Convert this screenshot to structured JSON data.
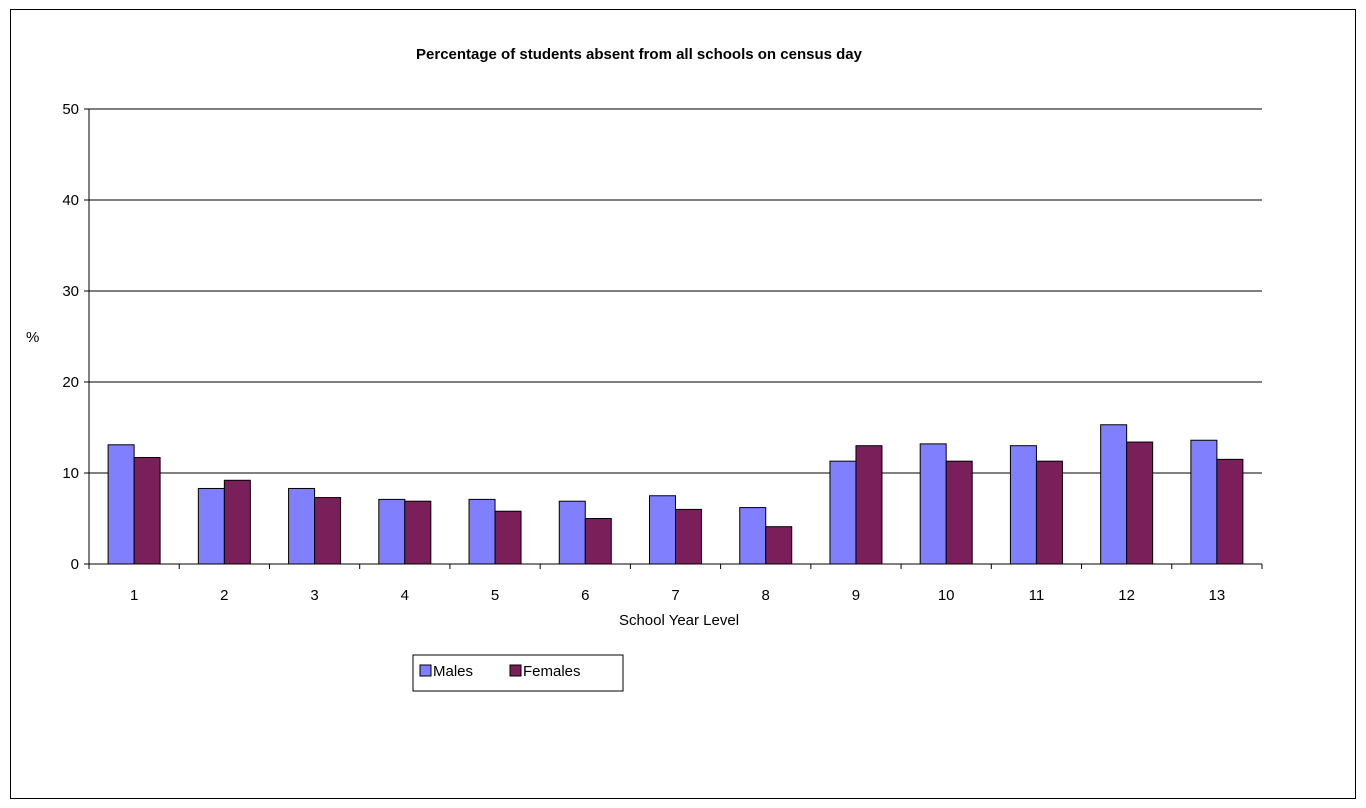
{
  "chart_data": {
    "type": "bar",
    "title": "Percentage of students absent from all schools on census day",
    "xlabel": "School Year Level",
    "ylabel": "%",
    "categories": [
      "1",
      "2",
      "3",
      "4",
      "5",
      "6",
      "7",
      "8",
      "9",
      "10",
      "11",
      "12",
      "13"
    ],
    "series": [
      {
        "name": "Males",
        "color": "#8080FF",
        "values": [
          13.1,
          8.3,
          8.3,
          7.1,
          7.1,
          6.9,
          7.5,
          6.2,
          11.3,
          13.2,
          13.0,
          15.3,
          13.6
        ]
      },
      {
        "name": "Females",
        "color": "#7B1F5A",
        "values": [
          11.7,
          9.2,
          7.3,
          6.9,
          5.8,
          5.0,
          6.0,
          4.1,
          13.0,
          11.3,
          11.3,
          13.4,
          11.5
        ]
      }
    ],
    "ylim": [
      0,
      50
    ],
    "yticks": [
      "0",
      "10",
      "20",
      "30",
      "40",
      "50"
    ],
    "grid": true,
    "legend_position": "bottom-left"
  }
}
